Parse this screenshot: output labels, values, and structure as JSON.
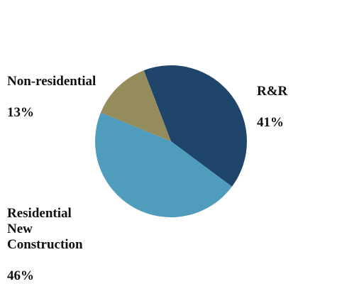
{
  "chart_data": {
    "type": "pie",
    "title": "",
    "start_angle_deg": -21,
    "slices": [
      {
        "key": "rr",
        "name": "R&R",
        "value": 41,
        "label": "41%",
        "color": "#1f456b"
      },
      {
        "key": "res",
        "name": "Residential\nNew\nConstruction",
        "value": 46,
        "label": "46%",
        "color": "#4f9cbd"
      },
      {
        "key": "nonres",
        "name": "Non-residential",
        "value": 13,
        "label": "13%",
        "color": "#958c5c"
      }
    ],
    "legend": "none"
  }
}
